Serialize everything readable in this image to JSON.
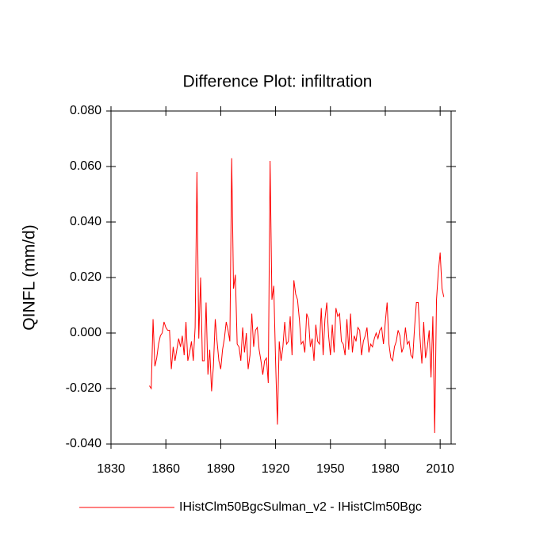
{
  "chart_data": {
    "type": "line",
    "title": "Difference Plot: infiltration",
    "ylabel": "QINFL  (mm/d)",
    "x": [
      1851,
      1852,
      1853,
      1854,
      1855,
      1856,
      1857,
      1858,
      1859,
      1860,
      1861,
      1862,
      1863,
      1864,
      1865,
      1866,
      1867,
      1868,
      1869,
      1870,
      1871,
      1872,
      1873,
      1874,
      1875,
      1876,
      1877,
      1878,
      1879,
      1880,
      1881,
      1882,
      1883,
      1884,
      1885,
      1886,
      1887,
      1888,
      1889,
      1890,
      1891,
      1892,
      1893,
      1894,
      1895,
      1896,
      1897,
      1898,
      1899,
      1900,
      1901,
      1902,
      1903,
      1904,
      1905,
      1906,
      1907,
      1908,
      1909,
      1910,
      1911,
      1912,
      1913,
      1914,
      1915,
      1916,
      1917,
      1918,
      1919,
      1920,
      1921,
      1922,
      1923,
      1924,
      1925,
      1926,
      1927,
      1928,
      1929,
      1930,
      1931,
      1932,
      1933,
      1934,
      1935,
      1936,
      1937,
      1938,
      1939,
      1940,
      1941,
      1942,
      1943,
      1944,
      1945,
      1946,
      1947,
      1948,
      1949,
      1950,
      1951,
      1952,
      1953,
      1954,
      1955,
      1956,
      1957,
      1958,
      1959,
      1960,
      1961,
      1962,
      1963,
      1964,
      1965,
      1966,
      1967,
      1968,
      1969,
      1970,
      1971,
      1972,
      1973,
      1974,
      1975,
      1976,
      1977,
      1978,
      1979,
      1980,
      1981,
      1982,
      1983,
      1984,
      1985,
      1986,
      1987,
      1988,
      1989,
      1990,
      1991,
      1992,
      1993,
      1994,
      1995,
      1996,
      1997,
      1998,
      1999,
      2000,
      2001,
      2002,
      2003,
      2004,
      2005,
      2006,
      2007,
      2008,
      2009,
      2010,
      2011,
      2012
    ],
    "series": [
      {
        "name": "IHistClm50BgcSulman_v2 - IHistClm50Bgc",
        "color": "#ff0000",
        "values": [
          -0.019,
          -0.02,
          0.005,
          -0.012,
          -0.009,
          -0.004,
          -0.001,
          0.0,
          0.004,
          0.002,
          0.001,
          0.001,
          -0.013,
          -0.005,
          -0.01,
          -0.006,
          -0.002,
          -0.005,
          -0.001,
          -0.008,
          0.004,
          -0.01,
          -0.007,
          -0.003,
          -0.01,
          0.002,
          0.058,
          -0.002,
          0.02,
          -0.01,
          -0.01,
          0.011,
          -0.015,
          -0.006,
          -0.021,
          -0.012,
          0.005,
          -0.003,
          -0.01,
          -0.013,
          -0.006,
          -0.002,
          0.004,
          0.001,
          -0.003,
          0.063,
          0.016,
          0.021,
          -0.004,
          -0.005,
          -0.01,
          0.002,
          -0.007,
          0.0,
          -0.013,
          -0.008,
          0.007,
          -0.005,
          0.001,
          0.002,
          -0.006,
          -0.01,
          -0.015,
          -0.01,
          -0.009,
          -0.018,
          0.062,
          0.012,
          0.017,
          -0.01,
          -0.033,
          -0.003,
          -0.01,
          -0.005,
          0.004,
          -0.004,
          -0.003,
          0.006,
          -0.008,
          0.019,
          0.014,
          0.012,
          0.005,
          -0.004,
          -0.003,
          -0.007,
          0.007,
          0.005,
          -0.005,
          -0.002,
          -0.01,
          0.003,
          -0.003,
          -0.004,
          0.009,
          -0.008,
          0.005,
          0.011,
          -0.001,
          -0.008,
          0.003,
          -0.007,
          0.009,
          0.006,
          0.007,
          -0.003,
          -0.004,
          -0.008,
          0.005,
          -0.006,
          0.007,
          -0.007,
          -0.001,
          -0.003,
          0.002,
          0.001,
          -0.008,
          -0.003,
          -0.001,
          0.002,
          -0.007,
          -0.004,
          -0.005,
          -0.002,
          0.0,
          -0.002,
          0.001,
          0.002,
          -0.004,
          0.004,
          0.011,
          -0.004,
          -0.009,
          -0.01,
          -0.005,
          -0.003,
          0.001,
          -0.001,
          -0.007,
          -0.005,
          0.002,
          -0.004,
          -0.003,
          -0.008,
          -0.009,
          0.002,
          0.011,
          0.011,
          -0.002,
          -0.011,
          0.004,
          -0.009,
          -0.005,
          0.001,
          -0.016,
          0.006,
          -0.036,
          0.012,
          0.022,
          0.029,
          0.016,
          0.013
        ]
      }
    ],
    "xlim": [
      1830,
      2016
    ],
    "ylim": [
      -0.04,
      0.08
    ],
    "xticks": [
      1830,
      1860,
      1890,
      1920,
      1950,
      1980,
      2010
    ],
    "yticks": [
      {
        "value": -0.04,
        "label": "-0.040"
      },
      {
        "value": -0.02,
        "label": "-0.020"
      },
      {
        "value": 0,
        "label": "0.000"
      },
      {
        "value": 0.02,
        "label": "0.020"
      },
      {
        "value": 0.04,
        "label": "0.040"
      },
      {
        "value": 0.06,
        "label": "0.060"
      },
      {
        "value": 0.08,
        "label": "0.080"
      }
    ],
    "grid": false
  }
}
